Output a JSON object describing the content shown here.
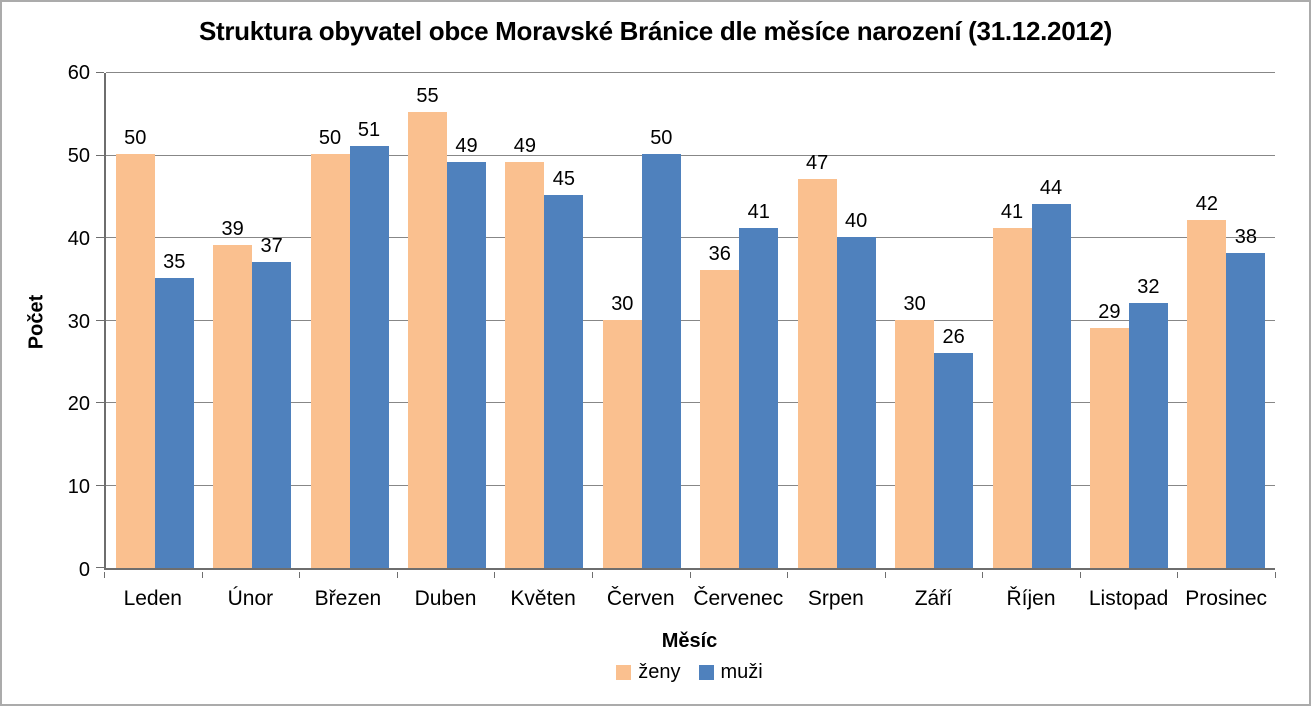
{
  "chart_data": {
    "type": "bar",
    "title": "Struktura obyvatel obce Moravské Bránice dle měsíce narození (31.12.2012)",
    "xlabel": "Měsíc",
    "ylabel": "Počet",
    "categories": [
      "Leden",
      "Únor",
      "Březen",
      "Duben",
      "Květen",
      "Červen",
      "Červenec",
      "Srpen",
      "Září",
      "Říjen",
      "Listopad",
      "Prosinec"
    ],
    "series": [
      {
        "name": "ženy",
        "color": "#FAC08F",
        "values": [
          50,
          39,
          50,
          55,
          49,
          30,
          36,
          47,
          30,
          41,
          29,
          42
        ]
      },
      {
        "name": "muži",
        "color": "#4F81BD",
        "values": [
          35,
          37,
          51,
          49,
          45,
          50,
          41,
          40,
          26,
          44,
          32,
          38
        ]
      }
    ],
    "ylim": [
      0,
      60
    ],
    "yticks": [
      0,
      10,
      20,
      30,
      40,
      50,
      60
    ],
    "grid": true,
    "data_labels": true,
    "legend_position": "bottom"
  },
  "style": {
    "gridline_color": "#878787",
    "axis_color": "#6e6e6e",
    "frame_color": "#ababab",
    "text_color": "#000000",
    "background": "#ffffff"
  }
}
